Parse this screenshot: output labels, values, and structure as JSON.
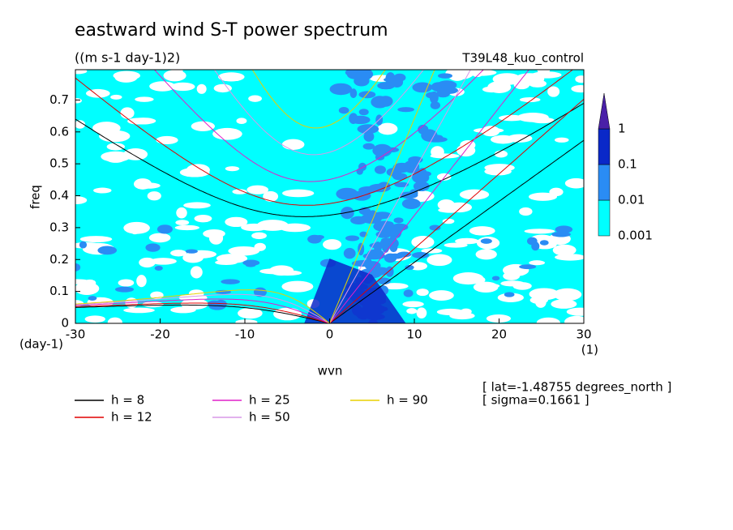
{
  "chart_data": {
    "type": "contour",
    "title": "eastward wind S-T power spectrum",
    "subtitle": "((m s-1 day-1)2)",
    "run_label": "T39L48_kuo_control",
    "x_label": "wvn",
    "y_label": "freq",
    "y_unit": "(day-1)",
    "x_unit": "(1)",
    "annotations": [
      "[ lat=-1.48755 degrees_north ]",
      "[ sigma=0.1661 ]"
    ],
    "xlim": [
      -30,
      30
    ],
    "xticks": [
      -30,
      -20,
      -10,
      0,
      10,
      20,
      30
    ],
    "ylim": [
      0,
      0.795
    ],
    "yticks": [
      0.0,
      0.1,
      0.2,
      0.3,
      0.4,
      0.5,
      0.6,
      0.7
    ],
    "colorbar": {
      "levels": [
        0.001,
        0.01,
        0.1,
        1
      ],
      "colors": [
        "#00ffff",
        "#2a8cf4",
        "#0a28c8",
        "#4a20a8"
      ]
    },
    "series": [
      {
        "name": "h =  8",
        "h": 8,
        "color": "#000000"
      },
      {
        "name": "h = 12",
        "h": 12,
        "color": "#e00000"
      },
      {
        "name": "h = 25",
        "h": 25,
        "color": "#e020c8"
      },
      {
        "name": "h = 50",
        "h": 50,
        "color": "#d898e8"
      },
      {
        "name": "h = 90",
        "h": 90,
        "color": "#e8d000"
      }
    ]
  }
}
